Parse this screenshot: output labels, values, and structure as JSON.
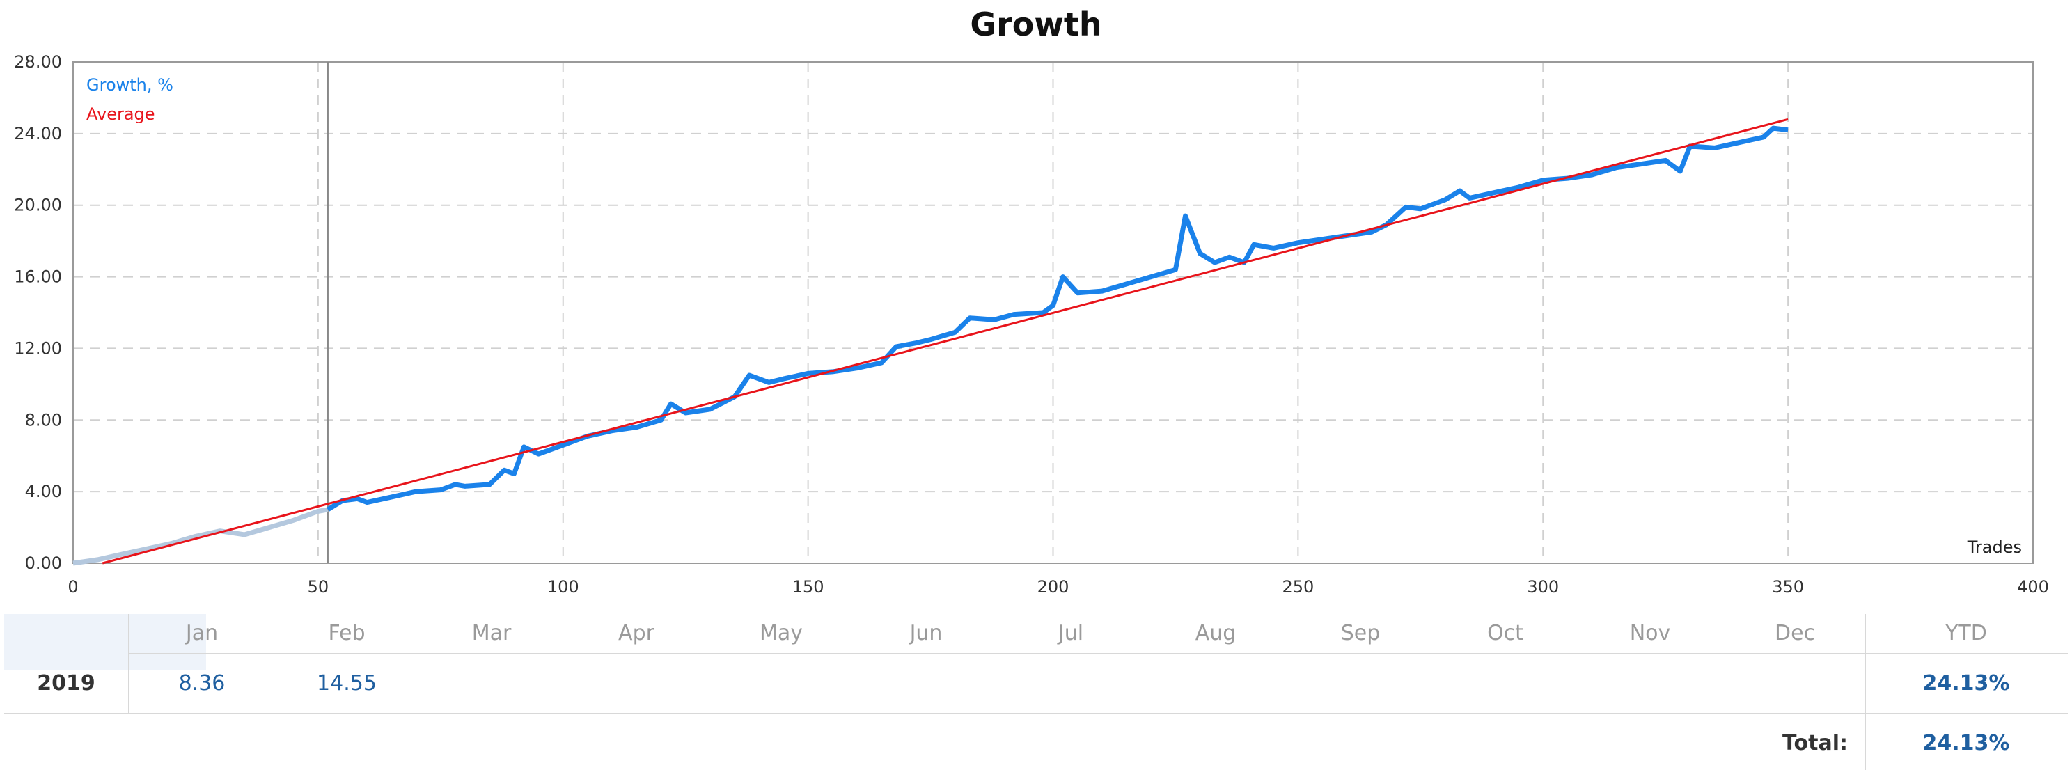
{
  "chart_data": {
    "type": "line",
    "title": "Growth",
    "xlabel": "Trades",
    "ylabel": "",
    "xlim": [
      0,
      400
    ],
    "ylim": [
      0,
      28
    ],
    "x_ticks": [
      "0",
      "50",
      "100",
      "150",
      "200",
      "250",
      "300",
      "350",
      "400"
    ],
    "y_ticks": [
      "0.00",
      "4.00",
      "8.00",
      "12.00",
      "16.00",
      "20.00",
      "24.00",
      "28.00"
    ],
    "grid": true,
    "legend_position": "top-left",
    "series": [
      {
        "name": "Growth, %",
        "color": "#1a82ea",
        "pre_color": "#b4c8de",
        "highlight_from": 52,
        "points": [
          [
            0,
            0
          ],
          [
            5,
            0.2
          ],
          [
            10,
            0.5
          ],
          [
            15,
            0.8
          ],
          [
            20,
            1.1
          ],
          [
            25,
            1.5
          ],
          [
            30,
            1.8
          ],
          [
            35,
            1.6
          ],
          [
            40,
            2.0
          ],
          [
            45,
            2.4
          ],
          [
            50,
            2.9
          ],
          [
            52,
            3.0
          ],
          [
            55,
            3.5
          ],
          [
            58,
            3.6
          ],
          [
            60,
            3.4
          ],
          [
            65,
            3.7
          ],
          [
            70,
            4.0
          ],
          [
            75,
            4.1
          ],
          [
            78,
            4.4
          ],
          [
            80,
            4.3
          ],
          [
            85,
            4.4
          ],
          [
            88,
            5.2
          ],
          [
            90,
            5.0
          ],
          [
            92,
            6.5
          ],
          [
            95,
            6.1
          ],
          [
            100,
            6.6
          ],
          [
            105,
            7.1
          ],
          [
            110,
            7.4
          ],
          [
            115,
            7.6
          ],
          [
            120,
            8.0
          ],
          [
            122,
            8.9
          ],
          [
            125,
            8.4
          ],
          [
            130,
            8.6
          ],
          [
            135,
            9.3
          ],
          [
            138,
            10.5
          ],
          [
            142,
            10.1
          ],
          [
            145,
            10.3
          ],
          [
            150,
            10.6
          ],
          [
            155,
            10.7
          ],
          [
            160,
            10.9
          ],
          [
            165,
            11.2
          ],
          [
            168,
            12.1
          ],
          [
            172,
            12.3
          ],
          [
            175,
            12.5
          ],
          [
            180,
            12.9
          ],
          [
            183,
            13.7
          ],
          [
            188,
            13.6
          ],
          [
            192,
            13.9
          ],
          [
            198,
            14.0
          ],
          [
            200,
            14.4
          ],
          [
            202,
            16.0
          ],
          [
            205,
            15.1
          ],
          [
            210,
            15.2
          ],
          [
            215,
            15.6
          ],
          [
            220,
            16.0
          ],
          [
            225,
            16.4
          ],
          [
            227,
            19.4
          ],
          [
            230,
            17.3
          ],
          [
            233,
            16.8
          ],
          [
            236,
            17.1
          ],
          [
            239,
            16.8
          ],
          [
            241,
            17.8
          ],
          [
            245,
            17.6
          ],
          [
            250,
            17.9
          ],
          [
            255,
            18.1
          ],
          [
            260,
            18.3
          ],
          [
            265,
            18.5
          ],
          [
            268,
            18.9
          ],
          [
            272,
            19.9
          ],
          [
            275,
            19.8
          ],
          [
            280,
            20.3
          ],
          [
            283,
            20.8
          ],
          [
            285,
            20.4
          ],
          [
            290,
            20.7
          ],
          [
            295,
            21.0
          ],
          [
            300,
            21.4
          ],
          [
            305,
            21.5
          ],
          [
            310,
            21.7
          ],
          [
            315,
            22.1
          ],
          [
            320,
            22.3
          ],
          [
            325,
            22.5
          ],
          [
            328,
            21.9
          ],
          [
            330,
            23.3
          ],
          [
            335,
            23.2
          ],
          [
            340,
            23.5
          ],
          [
            345,
            23.8
          ],
          [
            347,
            24.3
          ],
          [
            350,
            24.2
          ]
        ]
      },
      {
        "name": "Average",
        "color": "#e8141b",
        "points": [
          [
            6,
            0
          ],
          [
            350,
            24.8
          ]
        ]
      }
    ],
    "months": [
      "Jan",
      "Feb",
      "Mar",
      "Apr",
      "May",
      "Jun",
      "Jul",
      "Aug",
      "Sep",
      "Oct",
      "Nov",
      "Dec"
    ],
    "ytd_label": "YTD",
    "year": "2019",
    "monthly_values": [
      "8.36",
      "14.55",
      "",
      "",
      "",
      "",
      "",
      "",
      "",
      "",
      "",
      ""
    ],
    "ytd_value": "24.13%",
    "total_label": "Total:",
    "total_value": "24.13%"
  }
}
